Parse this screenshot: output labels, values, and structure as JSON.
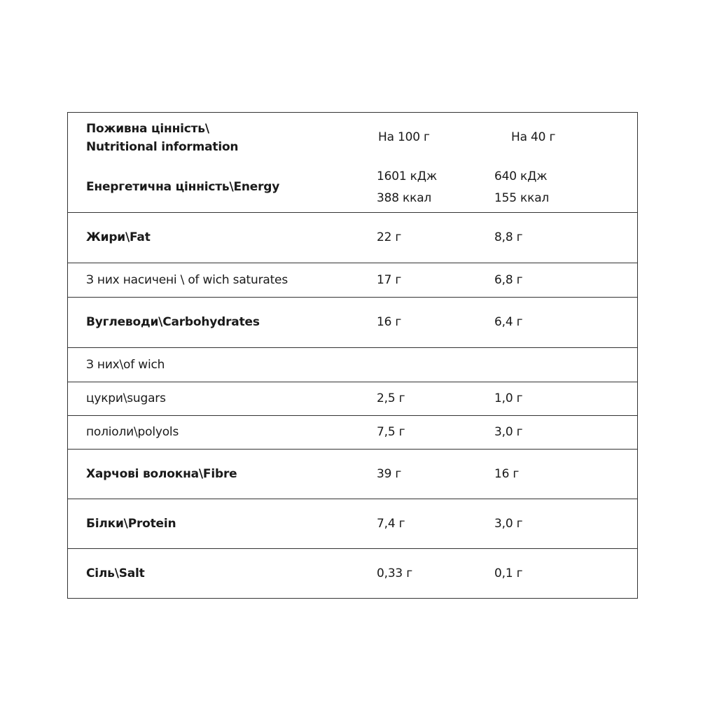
{
  "header": {
    "label_line1": "Поживна цінність\\",
    "label_line2": "Nutritional information",
    "col_100": "На 100 г",
    "col_40": "На 40 г"
  },
  "rows": [
    {
      "label": "Енергетична цінність\\Energy",
      "bold": true,
      "v100": [
        "1601 кДж",
        "388 ккал"
      ],
      "v40": [
        "640 кДж",
        "155 ккал"
      ]
    },
    {
      "label": "Жири\\Fat",
      "bold": true,
      "v100": [
        "22 г"
      ],
      "v40": [
        "8,8 г"
      ]
    },
    {
      "label": "З них насичені \\ of wich saturates",
      "bold": false,
      "v100": [
        "17 г"
      ],
      "v40": [
        "6,8 г"
      ]
    },
    {
      "label": "Вуглеводи\\Carbohydrates",
      "bold": true,
      "v100": [
        "16 г"
      ],
      "v40": [
        "6,4 г"
      ]
    },
    {
      "label": "З них\\of wich",
      "bold": false,
      "v100": [],
      "v40": []
    },
    {
      "label": "цукри\\sugars",
      "bold": false,
      "v100": [
        "2,5 г"
      ],
      "v40": [
        "1,0 г"
      ]
    },
    {
      "label": "поліоли\\polyols",
      "bold": false,
      "v100": [
        "7,5 г"
      ],
      "v40": [
        "3,0 г"
      ]
    },
    {
      "label": "Харчові волокна\\Fibre",
      "bold": true,
      "v100": [
        "39 г"
      ],
      "v40": [
        "16 г"
      ]
    },
    {
      "label": "Білки\\Protein",
      "bold": true,
      "v100": [
        "7,4 г"
      ],
      "v40": [
        "3,0 г"
      ]
    },
    {
      "label": "Сіль\\Salt",
      "bold": true,
      "v100": [
        "0,33 г"
      ],
      "v40": [
        "0,1 г"
      ]
    }
  ]
}
